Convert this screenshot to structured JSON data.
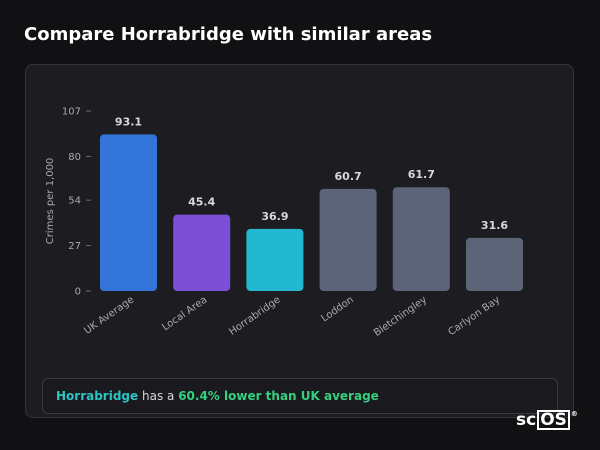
{
  "page": {
    "title": "Compare Horrabridge with similar areas"
  },
  "chart_data": {
    "type": "bar",
    "ylabel": "Crimes per 1,000",
    "ylim": [
      0,
      107
    ],
    "yticks": [
      0,
      27,
      54,
      80,
      107
    ],
    "categories": [
      "UK Average",
      "Local Area",
      "Horrabridge",
      "Loddon",
      "Bletchingley",
      "Carlyon Bay"
    ],
    "values": [
      93.1,
      45.4,
      36.9,
      60.7,
      61.7,
      31.6
    ],
    "value_labels": [
      "93.1",
      "45.4",
      "36.9",
      "60.7",
      "61.7",
      "31.6"
    ],
    "colors": [
      "#3375d8",
      "#7b4fd6",
      "#22b8d1",
      "#5b6577",
      "#5b6577",
      "#5b6577"
    ],
    "grid": false
  },
  "summary": {
    "area": "Horrabridge",
    "middle": " has a ",
    "highlight": "60.4% lower than UK average"
  },
  "logo": {
    "prefix": "sc",
    "boxed": "OS",
    "mark": "®"
  }
}
